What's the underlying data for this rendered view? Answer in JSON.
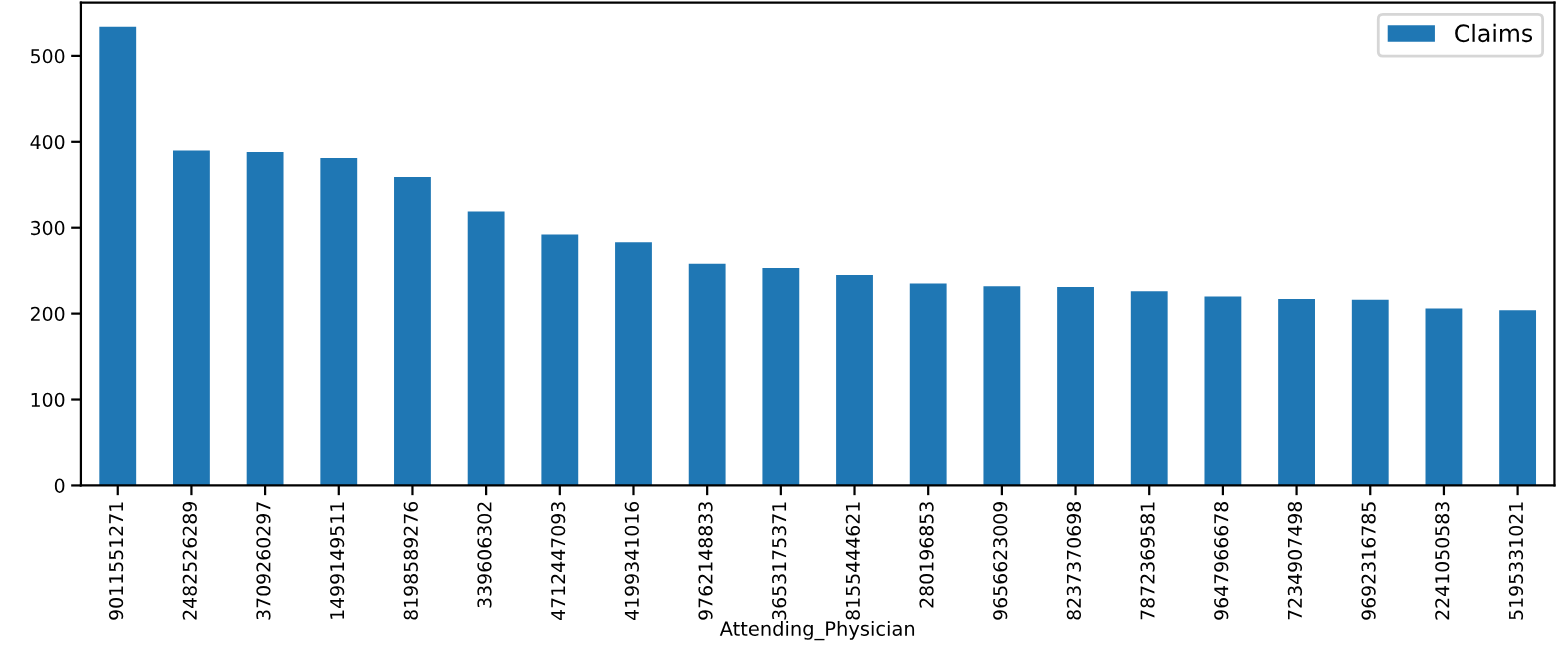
{
  "chart_data": {
    "type": "bar",
    "xlabel": "Attending_Physician",
    "categories": [
      "9011551271",
      "2482526289",
      "3709260297",
      "1499149511",
      "8198589276",
      "339606302",
      "4712447093",
      "4199341016",
      "9762148833",
      "3653175371",
      "8155444621",
      "280196853",
      "9656623009",
      "8237370698",
      "7872369581",
      "9647966678",
      "7234907498",
      "9692316785",
      "2241050583",
      "5195331021"
    ],
    "series": [
      {
        "name": "Claims",
        "color": "#1f77b4",
        "values": [
          534,
          390,
          388,
          381,
          359,
          319,
          292,
          283,
          258,
          253,
          245,
          235,
          232,
          231,
          226,
          220,
          217,
          216,
          206,
          204
        ]
      }
    ],
    "ylim": [
      0,
      562
    ],
    "yticks": [
      0,
      100,
      200,
      300,
      400,
      500
    ],
    "grid": false,
    "legend": "top right"
  }
}
